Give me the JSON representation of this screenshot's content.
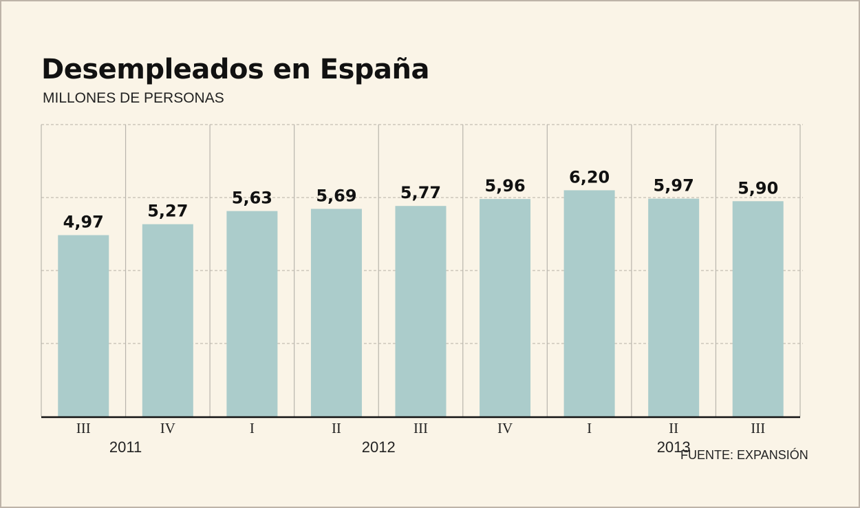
{
  "chart_data": {
    "type": "bar",
    "title": "Desempleados en España",
    "subtitle": "MILLONES DE PERSONAS",
    "source": "FUENTE: EXPANSIÓN",
    "categories": [
      "III",
      "IV",
      "I",
      "II",
      "III",
      "IV",
      "I",
      "II",
      "III"
    ],
    "years": [
      {
        "label": "2011",
        "first_index": 0,
        "last_index": 1
      },
      {
        "label": "2012",
        "first_index": 2,
        "last_index": 5
      },
      {
        "label": "2013",
        "first_index": 6,
        "last_index": 8
      }
    ],
    "values": [
      4.97,
      5.27,
      5.63,
      5.69,
      5.77,
      5.96,
      6.2,
      5.97,
      5.9
    ],
    "value_labels": [
      "4,97",
      "5,27",
      "5,63",
      "5,69",
      "5,77",
      "5,96",
      "6,20",
      "5,97",
      "5,90"
    ],
    "ylim": [
      0,
      8
    ],
    "gridlines": [
      2,
      4,
      6,
      8
    ],
    "grid": true,
    "bar_color": "#abcccb",
    "background_color": "#faf4e7"
  }
}
